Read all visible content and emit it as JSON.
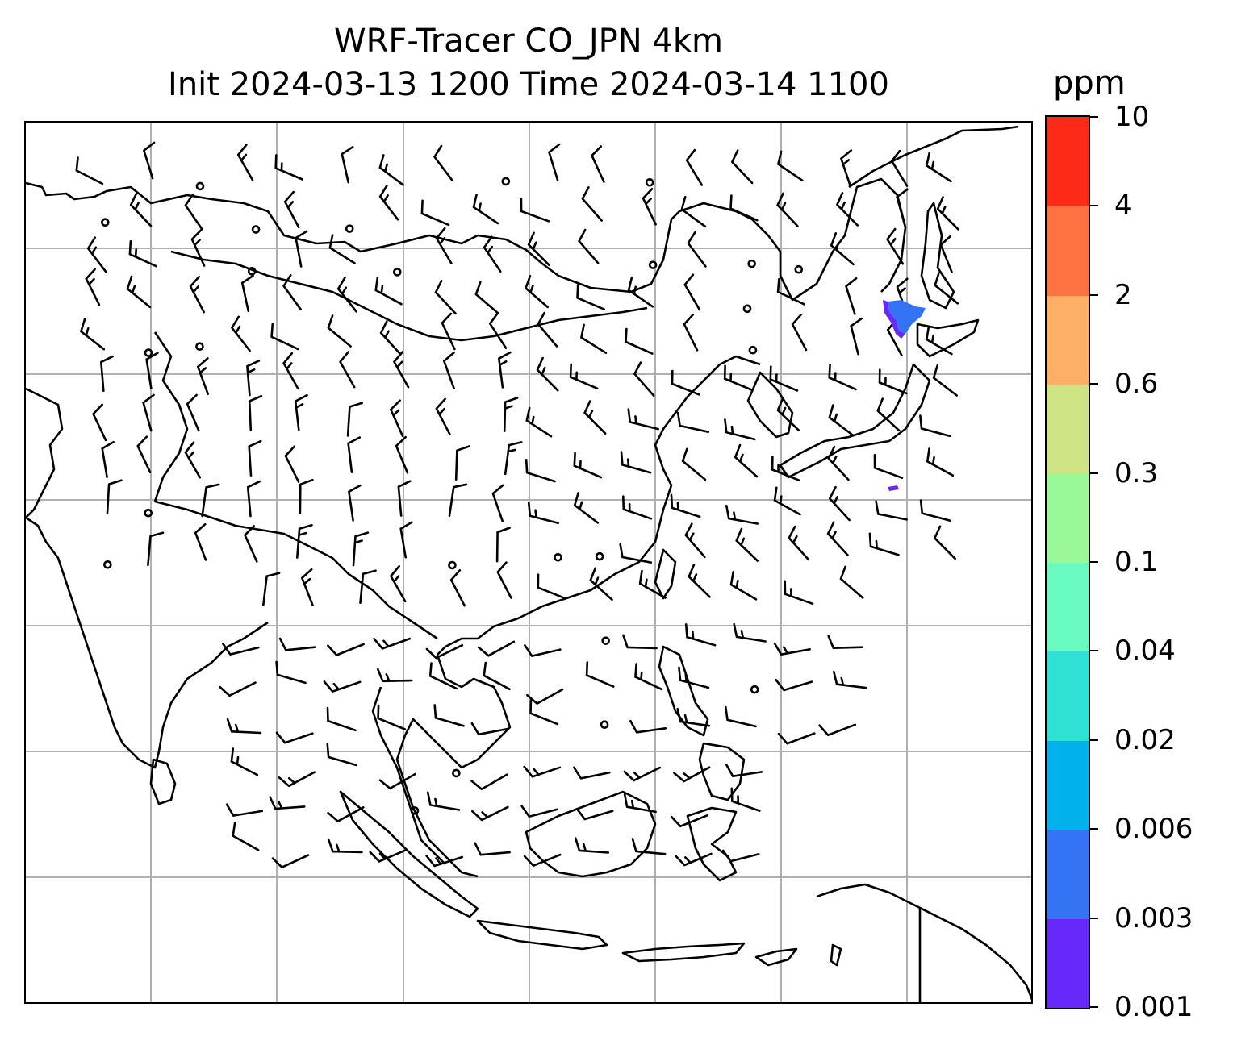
{
  "title": {
    "line1": "WRF-Tracer CO_JPN 4km",
    "line2": "Init 2024-03-13 1200 Time 2024-03-14 1100"
  },
  "colorbar": {
    "unit": "ppm",
    "ticks": [
      "0.001",
      "0.003",
      "0.006",
      "0.02",
      "0.04",
      "0.1",
      "0.3",
      "0.6",
      "2",
      "4",
      "10"
    ],
    "colors": [
      "#6629fa",
      "#3474f4",
      "#00b1ec",
      "#2fe0d4",
      "#69fac1",
      "#9af898",
      "#cde384",
      "#fdb065",
      "#fe7140",
      "#fe2a18"
    ]
  },
  "map": {
    "gridlines": true,
    "gridline_color": "#b0b0b0",
    "coastline_color": "#000000",
    "feature": "Wind barbs over Asia-Pacific with CO_JPN tracer plume near southern Sakhalin / Hokkaido"
  }
}
